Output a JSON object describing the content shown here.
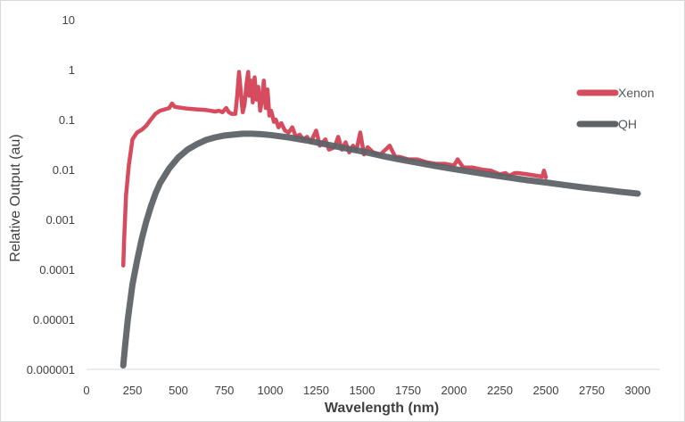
{
  "chart_data": {
    "type": "line",
    "xlabel": "Wavelength (nm)",
    "ylabel": "Relative Output (au)",
    "xlim": [
      0,
      3000
    ],
    "ylim": [
      1e-06,
      10
    ],
    "yscale": "log",
    "x_ticks": [
      "0",
      "250",
      "500",
      "750",
      "1000",
      "1250",
      "1500",
      "1750",
      "2000",
      "2250",
      "2500",
      "2750",
      "3000"
    ],
    "y_ticks": [
      "10",
      "1",
      "0.1",
      "0.01",
      "0.001",
      "0.0001",
      "0.00001",
      "0.000001"
    ],
    "grid": false,
    "legend": "right",
    "series": [
      {
        "name": "Xenon",
        "color": "#d64c5e",
        "points": [
          [
            200,
            0.00012
          ],
          [
            205,
            0.0004
          ],
          [
            215,
            0.003
          ],
          [
            230,
            0.012
          ],
          [
            250,
            0.04
          ],
          [
            275,
            0.055
          ],
          [
            300,
            0.062
          ],
          [
            325,
            0.075
          ],
          [
            350,
            0.1
          ],
          [
            375,
            0.13
          ],
          [
            400,
            0.15
          ],
          [
            425,
            0.16
          ],
          [
            450,
            0.17
          ],
          [
            465,
            0.21
          ],
          [
            480,
            0.18
          ],
          [
            500,
            0.175
          ],
          [
            550,
            0.165
          ],
          [
            600,
            0.16
          ],
          [
            650,
            0.155
          ],
          [
            700,
            0.145
          ],
          [
            720,
            0.15
          ],
          [
            740,
            0.14
          ],
          [
            760,
            0.17
          ],
          [
            775,
            0.14
          ],
          [
            790,
            0.13
          ],
          [
            810,
            0.13
          ],
          [
            820,
            0.3
          ],
          [
            830,
            0.9
          ],
          [
            840,
            0.35
          ],
          [
            850,
            0.14
          ],
          [
            860,
            0.2
          ],
          [
            870,
            0.5
          ],
          [
            880,
            0.9
          ],
          [
            885,
            0.3
          ],
          [
            895,
            0.6
          ],
          [
            905,
            0.22
          ],
          [
            915,
            0.7
          ],
          [
            925,
            0.25
          ],
          [
            935,
            0.45
          ],
          [
            945,
            0.15
          ],
          [
            955,
            0.25
          ],
          [
            965,
            0.6
          ],
          [
            975,
            0.17
          ],
          [
            985,
            0.4
          ],
          [
            995,
            0.12
          ],
          [
            1005,
            0.15
          ],
          [
            1020,
            0.09
          ],
          [
            1030,
            0.1
          ],
          [
            1045,
            0.07
          ],
          [
            1060,
            0.085
          ],
          [
            1080,
            0.06
          ],
          [
            1100,
            0.055
          ],
          [
            1120,
            0.07
          ],
          [
            1140,
            0.045
          ],
          [
            1160,
            0.05
          ],
          [
            1180,
            0.04
          ],
          [
            1200,
            0.045
          ],
          [
            1220,
            0.035
          ],
          [
            1250,
            0.06
          ],
          [
            1270,
            0.03
          ],
          [
            1300,
            0.04
          ],
          [
            1320,
            0.025
          ],
          [
            1350,
            0.028
          ],
          [
            1370,
            0.045
          ],
          [
            1390,
            0.025
          ],
          [
            1410,
            0.035
          ],
          [
            1430,
            0.022
          ],
          [
            1450,
            0.03
          ],
          [
            1470,
            0.025
          ],
          [
            1490,
            0.055
          ],
          [
            1510,
            0.02
          ],
          [
            1530,
            0.028
          ],
          [
            1560,
            0.022
          ],
          [
            1600,
            0.02
          ],
          [
            1650,
            0.03
          ],
          [
            1680,
            0.018
          ],
          [
            1700,
            0.018
          ],
          [
            1750,
            0.016
          ],
          [
            1800,
            0.016
          ],
          [
            1850,
            0.014
          ],
          [
            1900,
            0.013
          ],
          [
            1950,
            0.013
          ],
          [
            2000,
            0.012
          ],
          [
            2020,
            0.016
          ],
          [
            2050,
            0.011
          ],
          [
            2100,
            0.011
          ],
          [
            2150,
            0.01
          ],
          [
            2200,
            0.0095
          ],
          [
            2250,
            0.008
          ],
          [
            2280,
            0.0085
          ],
          [
            2300,
            0.0075
          ],
          [
            2330,
            0.0085
          ],
          [
            2350,
            0.0085
          ],
          [
            2400,
            0.008
          ],
          [
            2450,
            0.0075
          ],
          [
            2480,
            0.0072
          ],
          [
            2490,
            0.0095
          ],
          [
            2500,
            0.007
          ]
        ]
      },
      {
        "name": "QH",
        "color": "#5e6368",
        "points": [
          [
            200,
            1.2e-06
          ],
          [
            210,
            3e-06
          ],
          [
            225,
            1e-05
          ],
          [
            250,
            5e-05
          ],
          [
            275,
            0.00015
          ],
          [
            300,
            0.0004
          ],
          [
            325,
            0.0009
          ],
          [
            350,
            0.0018
          ],
          [
            375,
            0.0033
          ],
          [
            400,
            0.0053
          ],
          [
            450,
            0.0105
          ],
          [
            500,
            0.0175
          ],
          [
            550,
            0.025
          ],
          [
            600,
            0.032
          ],
          [
            650,
            0.039
          ],
          [
            700,
            0.044
          ],
          [
            750,
            0.048
          ],
          [
            800,
            0.05
          ],
          [
            850,
            0.052
          ],
          [
            900,
            0.052
          ],
          [
            950,
            0.051
          ],
          [
            1000,
            0.049
          ],
          [
            1100,
            0.044
          ],
          [
            1200,
            0.038
          ],
          [
            1300,
            0.032
          ],
          [
            1400,
            0.027
          ],
          [
            1500,
            0.023
          ],
          [
            1600,
            0.019
          ],
          [
            1700,
            0.016
          ],
          [
            1800,
            0.0137
          ],
          [
            1900,
            0.0118
          ],
          [
            2000,
            0.0102
          ],
          [
            2100,
            0.0089
          ],
          [
            2200,
            0.0078
          ],
          [
            2300,
            0.0069
          ],
          [
            2400,
            0.0061
          ],
          [
            2500,
            0.0055
          ],
          [
            2600,
            0.0049
          ],
          [
            2700,
            0.0044
          ],
          [
            2800,
            0.004
          ],
          [
            2900,
            0.0036
          ],
          [
            3000,
            0.0033
          ]
        ]
      }
    ]
  }
}
